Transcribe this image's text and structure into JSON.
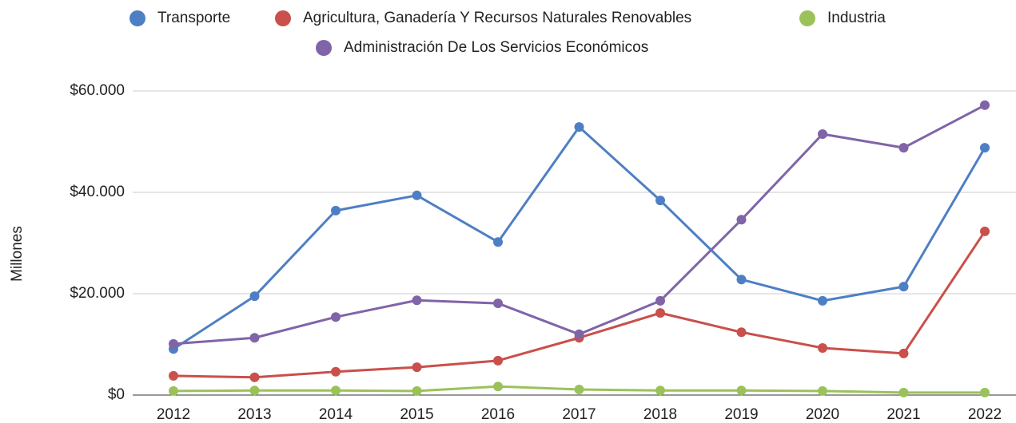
{
  "chart_data": {
    "type": "line",
    "y_label": "Millones",
    "categories": [
      "2012",
      "2013",
      "2014",
      "2015",
      "2016",
      "2017",
      "2018",
      "2019",
      "2020",
      "2021",
      "2022"
    ],
    "ylim": [
      0,
      60000
    ],
    "yticks": [
      {
        "value": 0,
        "label": "$0"
      },
      {
        "value": 20000,
        "label": "$20.000"
      },
      {
        "value": 40000,
        "label": "$40.000"
      },
      {
        "value": 60000,
        "label": "$60.000"
      }
    ],
    "grid": true,
    "legend": "top",
    "series": [
      {
        "name": "Transporte",
        "color": "#4e7fc4",
        "values": [
          9100,
          19500,
          36400,
          39400,
          30200,
          52900,
          38400,
          22800,
          18600,
          21400,
          48800
        ]
      },
      {
        "name": "Agricultura, Ganadería Y Recursos Naturales Renovables",
        "color": "#c9504b",
        "values": [
          3800,
          3500,
          4600,
          5500,
          6800,
          11300,
          16200,
          12400,
          9300,
          8200,
          32300
        ]
      },
      {
        "name": "Industria",
        "color": "#9bc25a",
        "values": [
          800,
          900,
          900,
          800,
          1700,
          1100,
          900,
          900,
          800,
          500,
          500
        ]
      },
      {
        "name": "Administración De Los Servicios Económicos",
        "color": "#8064a8",
        "values": [
          10100,
          11300,
          15400,
          18700,
          18100,
          12000,
          18600,
          34600,
          51500,
          48800,
          57200
        ]
      }
    ]
  }
}
